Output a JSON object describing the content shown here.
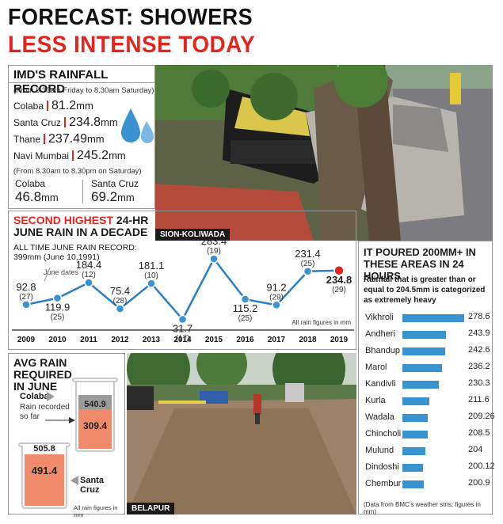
{
  "headline": {
    "line1": "FORECAST: SHOWERS",
    "line2": "LESS INTENSE TODAY"
  },
  "imd": {
    "title": "IMD'S RAINFALL RECORD",
    "period1": "(From 8.30am Friday to 8.30am Saturday)",
    "rows": [
      {
        "place": "Colaba",
        "value": "81.2",
        "unit": "mm"
      },
      {
        "place": "Santa Cruz",
        "value": "234.8",
        "unit": "mm"
      },
      {
        "place": "Thane",
        "value": "237.49",
        "unit": "mm"
      },
      {
        "place": "Navi Mumbai",
        "value": "245.2",
        "unit": "mm"
      }
    ],
    "period2": "(From 8.30am to 8.30pm on Saturday)",
    "day": [
      {
        "place": "Colaba",
        "value": "46.8",
        "unit": "mm"
      },
      {
        "place": "Santa Cruz",
        "value": "69.2",
        "unit": "mm"
      }
    ]
  },
  "photo1": {
    "caption": "SION-KOLIWADA"
  },
  "photo2": {
    "caption": "BELAPUR"
  },
  "june": {
    "title_red": "SECOND HIGHEST",
    "title_rest": " 24-HR",
    "title_line2": "JUNE RAIN IN A DECADE",
    "record_line1": "ALL TIME JUNE RAIN RECORD:",
    "record_line2": "399mm (June 10,1991)",
    "june_dates": "June dates",
    "footnote": "All rain figures in mm"
  },
  "chart_data": [
    {
      "type": "line",
      "x": [
        "2009",
        "2010",
        "2011",
        "2012",
        "2013",
        "2014",
        "2015",
        "2016",
        "2017",
        "2018",
        "2019"
      ],
      "values": [
        92.8,
        119.9,
        184.4,
        75.4,
        181.1,
        31.7,
        283.4,
        115.2,
        91.2,
        231.4,
        234.8
      ],
      "value_labels": [
        "92.8",
        "119.9",
        "184.4",
        "75.4",
        "181.1",
        "31.7",
        "283.4",
        "115.2",
        "91.2",
        "231.4",
        "234.8"
      ],
      "dates": [
        "(27)",
        "(25)",
        "(12)",
        "(28)",
        "(10)",
        "(17)",
        "(19)",
        "(25)",
        "(29)",
        "(25)",
        "(29)"
      ],
      "title": "SECOND HIGHEST 24-HR JUNE RAIN IN A DECADE",
      "colors": {
        "line": "#2a7fc4",
        "point": "#3a93d1",
        "highlight": "#e0261f"
      }
    },
    {
      "type": "bar",
      "title": "IT POURED 200MM+ IN THESE AREAS IN 24 HOURS",
      "categories": [
        "Vikhroli",
        "Andheri",
        "Bhandup",
        "Marol",
        "Kandivli",
        "Kurla",
        "Wadala",
        "Chincholi",
        "Mulund",
        "Dindoshi",
        "Chembur"
      ],
      "values": [
        278.6,
        243.9,
        242.6,
        236.2,
        230.3,
        211.6,
        209.26,
        208.5,
        204,
        200.12,
        200.9
      ],
      "value_labels": [
        "278.6",
        "243.9",
        "242.6",
        "236.2",
        "230.3",
        "211.6",
        "209.26",
        "208.5",
        "204",
        "200.12",
        "200.9"
      ],
      "color": "#3a93d1"
    }
  ],
  "areas": {
    "title_line1": "IT POURED 200MM+ IN",
    "title_line2": "THESE AREAS IN 24 HOURS",
    "note_line1": "Rainfall that is greater than or",
    "note_line2": "equal to 204.5mm is categorized",
    "note_line3": "as extremely heavy",
    "footnote": "(Data from BMC's weather stns; figures in mm)"
  },
  "avg": {
    "title_line1": "AVG RAIN REQUIRED",
    "title_line2": "IN JUNE",
    "colaba_label": "Colaba",
    "recorded_line1": "Rain recorded",
    "recorded_line2": "so far",
    "colaba_required": "540.9",
    "colaba_recorded": "309.4",
    "colaba_fill": 0.572,
    "santacruz_label": "Santa Cruz",
    "santacruz_required": "505.8",
    "santacruz_recorded": "491.4",
    "santacruz_fill": 0.971,
    "footnote": "All rain figures in mm",
    "colors": {
      "glass": "#d9d9d9",
      "fill": "#f08a6a",
      "grey": "#9a9a9a"
    }
  }
}
